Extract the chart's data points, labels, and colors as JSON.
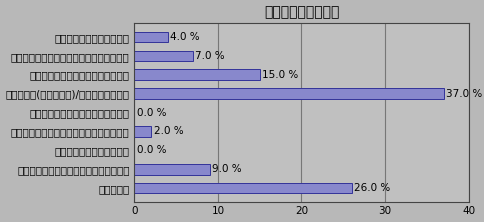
{
  "title": "「デジタルテレビ」",
  "title_display": "【デジタルテレビ】",
  "categories": [
    "増やすことが決定している",
    "決定してはいないが、増やす方向で検討中",
    "決定してはいないが、増やすと思う",
    "変わらない(増減しない)/変わらないと思う",
    "決定してはいないが、減らすと思う",
    "決定してはいないが、減らす方向で検討中",
    "減らすことが決定している",
    "元々導入されておらず、導入予定もない",
    "わからない"
  ],
  "values": [
    4.0,
    7.0,
    15.0,
    37.0,
    0.0,
    2.0,
    0.0,
    9.0,
    26.0
  ],
  "bar_color": "#8888cc",
  "bar_edge_color": "#333399",
  "background_color": "#b8b8b8",
  "plot_bg_color": "#c0c0c0",
  "xlim": [
    0,
    40
  ],
  "xticks": [
    0,
    10,
    20,
    30,
    40
  ],
  "grid_color": "#777777",
  "title_fontsize": 10,
  "label_fontsize": 7.5,
  "value_fontsize": 7.5,
  "bar_height": 0.55
}
